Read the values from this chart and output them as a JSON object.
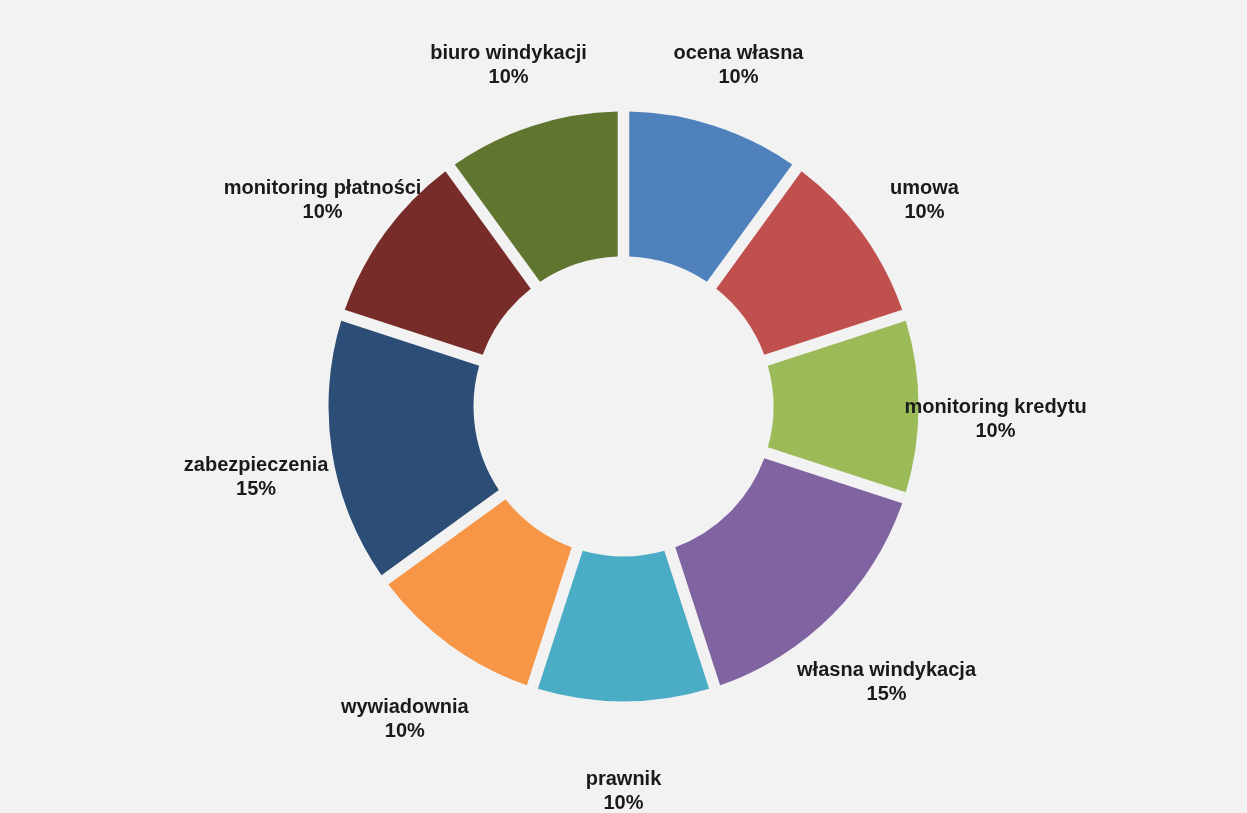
{
  "chart_data": {
    "type": "donut",
    "categories": [
      "ocena własna",
      "umowa",
      "monitoring kredytu",
      "własna windykacja",
      "prawnik",
      "wywiadownia",
      "zabezpieczenia",
      "monitoring płatności",
      "biuro windykacji"
    ],
    "values": [
      10,
      10,
      10,
      15,
      10,
      10,
      15,
      10,
      10
    ],
    "value_labels": [
      "10%",
      "10%",
      "10%",
      "15%",
      "10%",
      "10%",
      "15%",
      "10%",
      "10%"
    ],
    "colors": [
      "#4f81bd",
      "#c0504d",
      "#9bbb59",
      "#8064a2",
      "#4bacc6",
      "#f79646",
      "#2c4d75",
      "#772c2a",
      "#5f7530"
    ]
  }
}
